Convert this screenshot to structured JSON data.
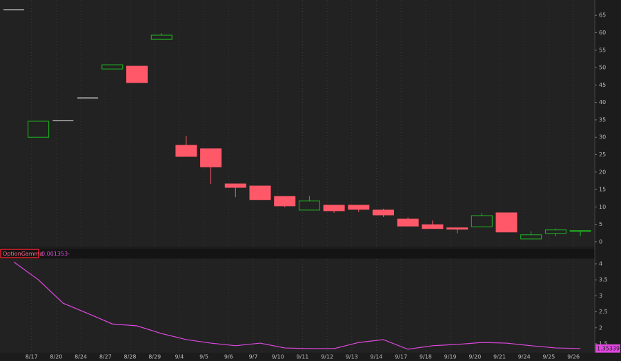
{
  "chart_data": [
    {
      "type": "candlestick",
      "categories": [
        null,
        "8/17",
        "8/20",
        "8/24",
        "8/27",
        "8/28",
        "8/29",
        "9/4",
        "9/5",
        "9/6",
        "9/7",
        "9/10",
        "9/11",
        "9/12",
        "9/13",
        "9/14",
        "9/17",
        "9/18",
        "9/19",
        "9/20",
        "9/21",
        "9/24",
        "9/25",
        "9/26"
      ],
      "open": [
        66.6,
        30.0,
        34.8,
        41.3,
        49.6,
        50.4,
        58.1,
        27.7,
        26.7,
        16.6,
        16.0,
        13.0,
        9.1,
        10.5,
        10.5,
        9.1,
        6.5,
        4.9,
        4.0,
        4.3,
        8.3,
        0.8,
        2.4,
        3.0
      ],
      "high": [
        66.6,
        34.6,
        34.8,
        41.3,
        50.8,
        50.4,
        59.9,
        30.4,
        26.7,
        16.6,
        16.0,
        13.0,
        13.2,
        10.5,
        10.5,
        9.5,
        7.0,
        6.1,
        4.0,
        8.3,
        8.3,
        3.0,
        3.8,
        3.2
      ],
      "low": [
        66.6,
        30.0,
        34.8,
        41.3,
        49.6,
        45.7,
        58.1,
        24.5,
        16.6,
        12.8,
        12.1,
        9.9,
        9.1,
        8.3,
        8.5,
        7.1,
        4.5,
        3.8,
        2.4,
        4.3,
        2.8,
        0.8,
        1.6,
        1.6
      ],
      "close": [
        66.6,
        34.6,
        34.8,
        41.3,
        50.8,
        45.7,
        59.3,
        24.5,
        21.5,
        15.6,
        12.1,
        10.3,
        11.7,
        8.9,
        9.3,
        7.7,
        4.5,
        3.8,
        3.6,
        7.5,
        2.8,
        2.0,
        3.4,
        3.2
      ],
      "up_color": "#1fb81f",
      "down_color": "#ff5868",
      "flat_color": "#d8d8d8",
      "ylim": [
        -1.4,
        69.4
      ],
      "yticks": [
        0,
        5,
        10,
        15,
        20,
        25,
        30,
        35,
        40,
        45,
        50,
        55,
        60,
        65
      ]
    },
    {
      "type": "line",
      "title": "OptionGamma",
      "study_value": "0.001353-",
      "color": "#e048e0",
      "values": [
        4.06,
        3.5,
        2.77,
        2.45,
        2.12,
        2.06,
        1.82,
        1.63,
        1.52,
        1.44,
        1.52,
        1.37,
        1.35,
        1.35,
        1.54,
        1.63,
        1.33,
        1.44,
        1.48,
        1.54,
        1.52,
        1.44,
        1.37,
        1.35339
      ],
      "ylim": [
        1.22,
        4.15
      ],
      "yticks": [
        1.5,
        2,
        2.5,
        3,
        3.5,
        4
      ]
    }
  ]
}
